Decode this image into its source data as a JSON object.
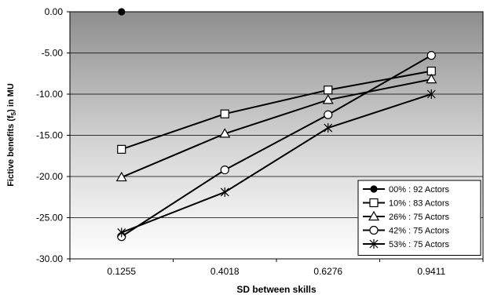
{
  "chart_data": {
    "type": "line",
    "title": "",
    "xlabel": "SD between skills",
    "ylabel": "Fictive benefits (f",
    "ylabel_sub": "5",
    "ylabel_suffix": ") in MU",
    "categories": [
      "0.1255",
      "0.4018",
      "0.6276",
      "0.9411"
    ],
    "ylim": [
      -30,
      0
    ],
    "yticks": [
      "0.00",
      "-5.00",
      "-10.00",
      "-15.00",
      "-20.00",
      "-25.00",
      "-30.00"
    ],
    "ytick_values": [
      0,
      -5,
      -10,
      -15,
      -20,
      -25,
      -30
    ],
    "grid": true,
    "plot_background": "gradient gray to white",
    "legend_position": "bottom-right",
    "series": [
      {
        "name": "00% : 92 Actors",
        "marker": "filled-circle",
        "values": [
          0.0,
          null,
          null,
          null
        ]
      },
      {
        "name": "10%  : 83 Actors",
        "marker": "square",
        "values": [
          -16.7,
          -12.4,
          -9.5,
          -7.2
        ]
      },
      {
        "name": "26% : 75 Actors",
        "marker": "triangle",
        "values": [
          -20.1,
          -14.8,
          -10.7,
          -8.2
        ]
      },
      {
        "name": "42% : 75 Actors",
        "marker": "circle",
        "values": [
          -27.3,
          -19.2,
          -12.5,
          -5.3
        ]
      },
      {
        "name": "53% : 75 Actors",
        "marker": "star",
        "values": [
          -26.8,
          -21.9,
          -14.1,
          -10.0
        ]
      }
    ]
  }
}
